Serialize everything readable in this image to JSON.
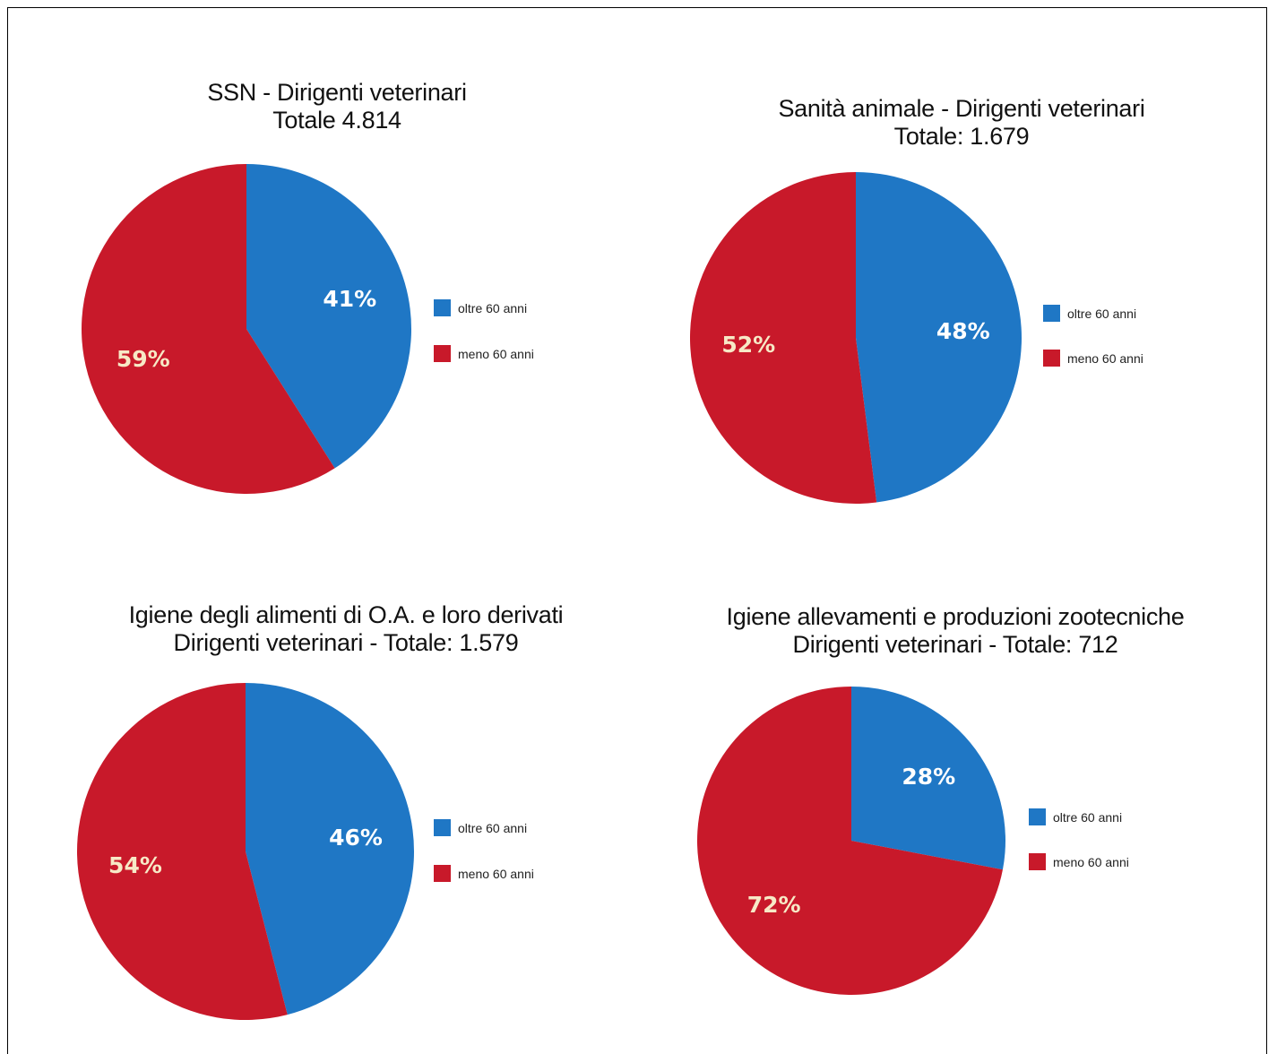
{
  "colors": {
    "oltre": "#1f77c5",
    "meno": "#c8192a",
    "label_oltre": "#ffffff",
    "label_meno": "#f7e9c6"
  },
  "chart_data": [
    {
      "type": "pie",
      "title_lines": [
        "SSN - Dirigenti veterinari",
        "Totale 4.814"
      ],
      "categories": [
        "oltre 60 anni",
        "meno 60 anni"
      ],
      "values": [
        41,
        59
      ],
      "labels": [
        "41%",
        "59%"
      ],
      "legend_position": "right"
    },
    {
      "type": "pie",
      "title_lines": [
        "Sanità animale - Dirigenti veterinari",
        "Totale: 1.679"
      ],
      "categories": [
        "oltre 60 anni",
        "meno 60 anni"
      ],
      "values": [
        48,
        52
      ],
      "labels": [
        "48%",
        "52%"
      ],
      "legend_position": "right"
    },
    {
      "type": "pie",
      "title_lines": [
        "Igiene degli alimenti di O.A. e loro derivati",
        "Dirigenti veterinari - Totale: 1.579"
      ],
      "categories": [
        "oltre 60 anni",
        "meno 60 anni"
      ],
      "values": [
        46,
        54
      ],
      "labels": [
        "46%",
        "54%"
      ],
      "legend_position": "right"
    },
    {
      "type": "pie",
      "title_lines": [
        "Igiene allevamenti e produzioni zootecniche",
        "Dirigenti veterinari - Totale: 712"
      ],
      "categories": [
        "oltre 60 anni",
        "meno 60 anni"
      ],
      "values": [
        28,
        72
      ],
      "labels": [
        "28%",
        "72%"
      ],
      "legend_position": "right"
    }
  ]
}
